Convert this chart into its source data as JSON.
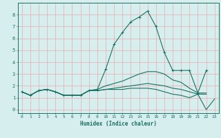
{
  "title": "",
  "xlabel": "Humidex (Indice chaleur)",
  "ylabel": "",
  "bg_color": "#d6eeee",
  "grid_color": "#e8aaaa",
  "line_color": "#1a7060",
  "xlim": [
    -0.5,
    23.5
  ],
  "ylim": [
    -0.3,
    9.0
  ],
  "xticks": [
    0,
    1,
    2,
    3,
    4,
    5,
    6,
    7,
    8,
    9,
    10,
    11,
    12,
    13,
    14,
    15,
    16,
    17,
    18,
    19,
    20,
    21,
    22,
    23
  ],
  "yticks": [
    0,
    1,
    2,
    3,
    4,
    5,
    6,
    7,
    8
  ],
  "lines": [
    {
      "x": [
        0,
        1,
        2,
        3,
        4,
        5,
        6,
        7,
        8,
        9,
        10,
        11,
        12,
        13,
        14,
        15,
        16,
        17,
        18,
        19,
        20,
        21,
        22
      ],
      "y": [
        1.5,
        1.2,
        1.6,
        1.7,
        1.5,
        1.2,
        1.2,
        1.2,
        1.6,
        1.7,
        3.4,
        5.5,
        6.5,
        7.4,
        7.8,
        8.3,
        7.0,
        4.8,
        3.3,
        3.3,
        3.3,
        1.4,
        3.3
      ],
      "marker": "+"
    },
    {
      "x": [
        0,
        1,
        2,
        3,
        4,
        5,
        6,
        7,
        8,
        9,
        10,
        11,
        12,
        13,
        14,
        15,
        16,
        17,
        18,
        19,
        20,
        21,
        22
      ],
      "y": [
        1.5,
        1.2,
        1.6,
        1.7,
        1.5,
        1.2,
        1.2,
        1.2,
        1.6,
        1.7,
        2.0,
        2.2,
        2.4,
        2.7,
        3.0,
        3.2,
        3.2,
        3.0,
        2.5,
        2.3,
        1.8,
        1.4,
        1.4
      ],
      "marker": null
    },
    {
      "x": [
        0,
        1,
        2,
        3,
        4,
        5,
        6,
        7,
        8,
        9,
        10,
        11,
        12,
        13,
        14,
        15,
        16,
        17,
        18,
        19,
        20,
        21,
        22,
        23
      ],
      "y": [
        1.5,
        1.2,
        1.6,
        1.7,
        1.5,
        1.2,
        1.2,
        1.2,
        1.6,
        1.6,
        1.7,
        1.7,
        1.7,
        1.8,
        1.8,
        1.8,
        1.7,
        1.5,
        1.3,
        1.2,
        1.0,
        1.3,
        0.0,
        0.9
      ],
      "marker": null
    },
    {
      "x": [
        0,
        1,
        2,
        3,
        4,
        5,
        6,
        7,
        8,
        9,
        10,
        11,
        12,
        13,
        14,
        15,
        16,
        17,
        18,
        19,
        20,
        21,
        22
      ],
      "y": [
        1.5,
        1.2,
        1.6,
        1.7,
        1.5,
        1.2,
        1.2,
        1.2,
        1.6,
        1.6,
        1.7,
        1.8,
        1.9,
        2.0,
        2.1,
        2.2,
        2.1,
        2.0,
        1.8,
        1.7,
        1.5,
        1.3,
        1.3
      ],
      "marker": null
    }
  ]
}
